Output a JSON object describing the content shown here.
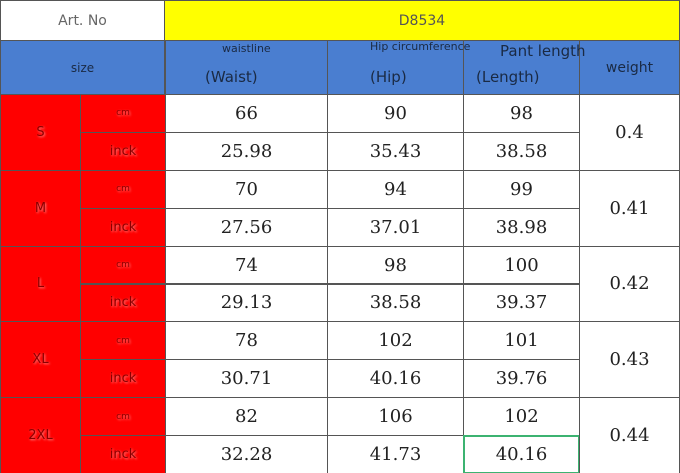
{
  "header": {
    "art_no_label": "Art. No",
    "art_no": "D8534"
  },
  "columns": {
    "size": "size",
    "waist_top": "waistline",
    "waist": "(Waist)",
    "hip_top": "Hip circumference",
    "hip": "(Hip)",
    "length_top": "Pant length",
    "length": "(Length)",
    "weight": "weight"
  },
  "rows": [
    {
      "size": "S",
      "units": [
        "cm",
        "inck"
      ],
      "cm": [
        66,
        90,
        98
      ],
      "inch": [
        25.98,
        35.43,
        38.58
      ],
      "weight": 0.4
    },
    {
      "size": "M",
      "units": [
        "cm",
        "inck"
      ],
      "cm": [
        70,
        94,
        99
      ],
      "inch": [
        27.56,
        37.01,
        38.98
      ],
      "weight": 0.41
    },
    {
      "size": "L",
      "units": [
        "cm",
        "inck"
      ],
      "cm": [
        74,
        98,
        100
      ],
      "inch": [
        29.13,
        38.58,
        39.37
      ],
      "weight": 0.42
    },
    {
      "size": "XL",
      "units": [
        "cm",
        "inck"
      ],
      "cm": [
        78,
        102,
        101
      ],
      "inch": [
        30.71,
        40.16,
        39.76
      ],
      "weight": 0.43
    },
    {
      "size": "2XL",
      "units": [
        "cm",
        "inck"
      ],
      "cm": [
        82,
        106,
        102
      ],
      "inch": [
        32.28,
        41.73,
        40.16
      ],
      "weight": 0.44
    }
  ]
}
